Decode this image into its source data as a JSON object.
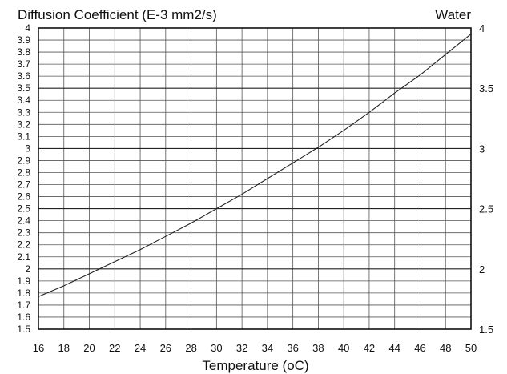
{
  "chart_data": {
    "type": "line",
    "title": "Diffusion Coefficient (E-3 mm2/s)",
    "subtitle": "Water",
    "xlabel": "Temperature (oC)",
    "ylabel": "",
    "xlim": [
      16,
      50
    ],
    "ylim": [
      1.5,
      4.0
    ],
    "grid": true,
    "x_ticks": [
      "16",
      "18",
      "20",
      "22",
      "24",
      "26",
      "28",
      "30",
      "32",
      "34",
      "36",
      "38",
      "40",
      "42",
      "44",
      "46",
      "48",
      "50"
    ],
    "y_ticks_left": [
      "1.5",
      "1.6",
      "1.7",
      "1.8",
      "1.9",
      "2",
      "2.1",
      "2.2",
      "2.3",
      "2.4",
      "2.5",
      "2.6",
      "2.7",
      "2.8",
      "2.9",
      "3",
      "3.1",
      "3.2",
      "3.3",
      "3.4",
      "3.5",
      "3.6",
      "3.7",
      "3.8",
      "3.9",
      "4"
    ],
    "y_ticks_right": [
      "1.5",
      "2",
      "2.5",
      "3",
      "3.5",
      "4"
    ],
    "series": [
      {
        "x": [
          16,
          18,
          20,
          22,
          24,
          26,
          28,
          30,
          32,
          34,
          36,
          38,
          40,
          42,
          44,
          46,
          48,
          50
        ],
        "y": [
          1.77,
          1.86,
          1.96,
          2.06,
          2.16,
          2.27,
          2.38,
          2.5,
          2.62,
          2.75,
          2.88,
          3.01,
          3.15,
          3.3,
          3.46,
          3.61,
          3.78,
          3.95
        ]
      }
    ]
  }
}
